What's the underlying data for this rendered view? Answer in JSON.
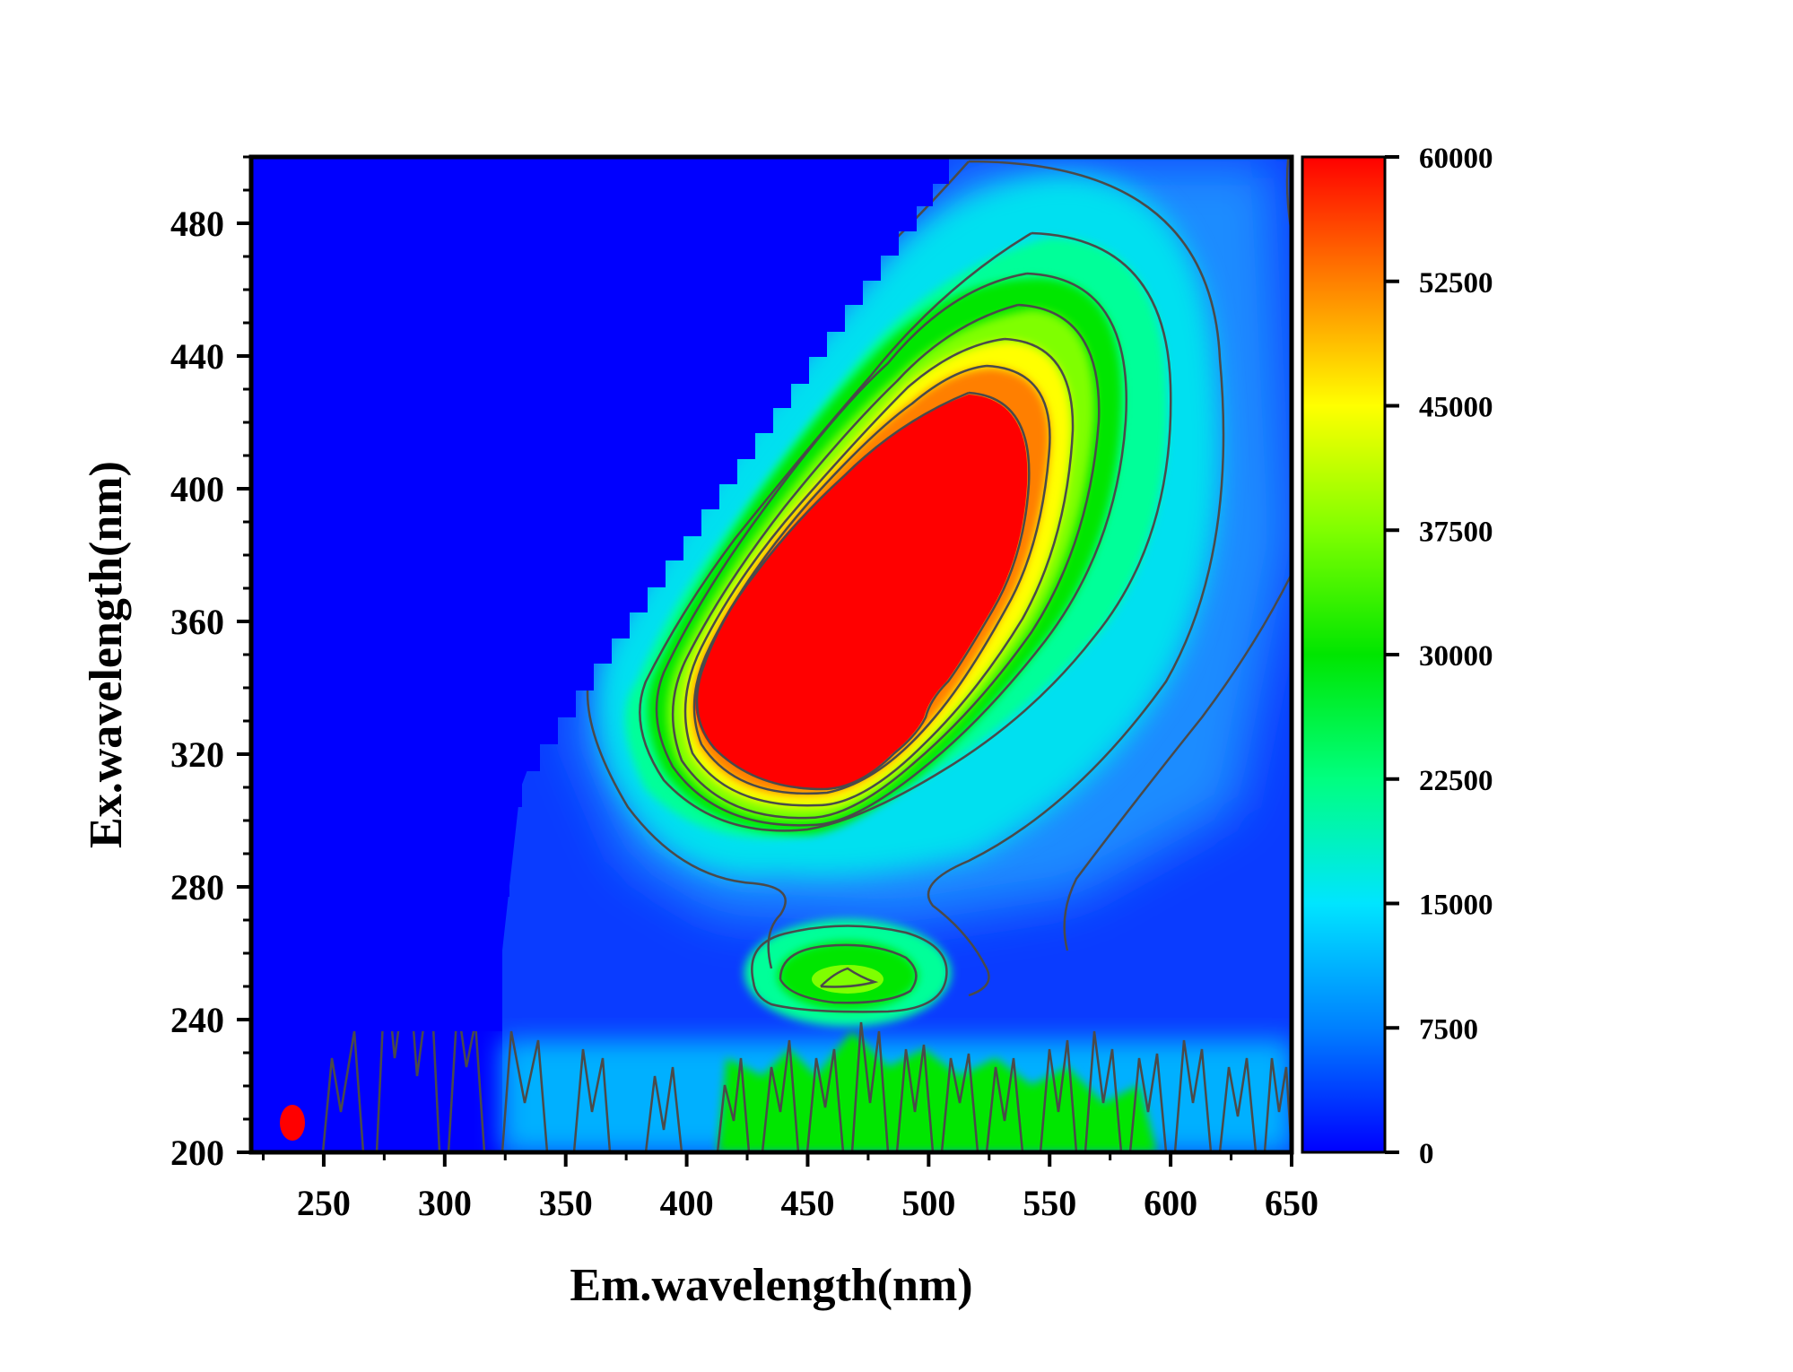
{
  "chart_data": {
    "type": "heatmap",
    "subtype": "contour",
    "title": "",
    "xlabel": "Em.wavelength(nm)",
    "ylabel": "Ex.wavelength(nm)",
    "xlim": [
      220,
      650
    ],
    "ylim": [
      200,
      500
    ],
    "x_ticks": [
      250,
      300,
      350,
      400,
      450,
      500,
      550,
      600,
      650
    ],
    "y_ticks": [
      200,
      240,
      280,
      320,
      360,
      400,
      440,
      480
    ],
    "colorbar": {
      "min": 0,
      "max": 60000,
      "ticks": [
        0,
        7500,
        15000,
        22500,
        30000,
        37500,
        45000,
        52500,
        60000
      ],
      "tick_labels": [
        "0",
        "7500",
        "15000",
        "22500",
        "30000",
        "37500",
        "45000",
        "52500",
        "60000"
      ],
      "colormap": [
        "#0000ff",
        "#0080ff",
        "#00e5ff",
        "#00ff80",
        "#00e600",
        "#80ff00",
        "#ffff00",
        "#ff8000",
        "#ff0000"
      ]
    },
    "peaks": [
      {
        "em": 465,
        "ex": 370,
        "intensity": 60000,
        "note": "main saturated peak"
      },
      {
        "em": 467,
        "ex": 252,
        "intensity": 33000,
        "note": "secondary peak"
      },
      {
        "em": 235,
        "ex": 210,
        "intensity": 60000,
        "note": "Rayleigh scatter spot"
      }
    ],
    "scatter_band": {
      "ex_range": [
        200,
        232
      ],
      "em_range": [
        360,
        650
      ],
      "intensity_range": [
        5000,
        34000
      ]
    },
    "cutoff": {
      "em_at_ex_500": 510,
      "em_at_ex_310": 358
    },
    "contour_levels": [
      7500,
      15000,
      22500,
      30000,
      37500,
      45000,
      52500
    ]
  }
}
